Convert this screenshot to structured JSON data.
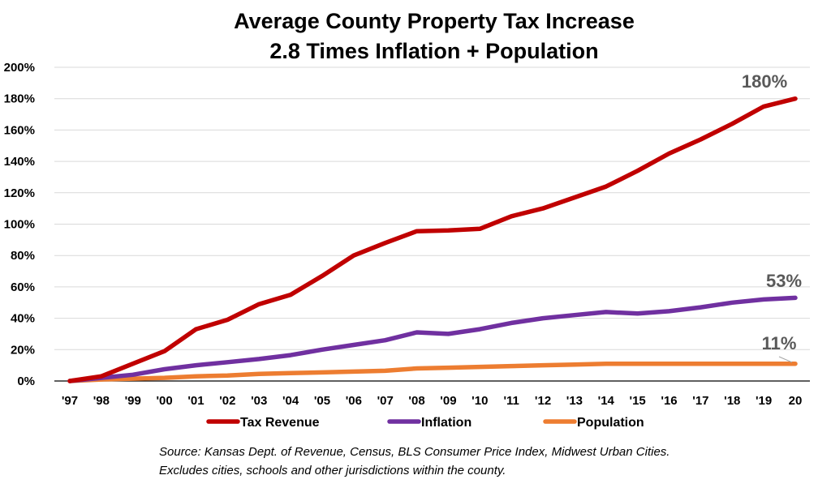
{
  "chart_data": {
    "type": "line",
    "title": "Average County Property Tax Increase",
    "subtitle": "2.8 Times Inflation + Population",
    "xlabel": "",
    "ylabel": "",
    "categories": [
      "'97",
      "'98",
      "'99",
      "'00",
      "'01",
      "'02",
      "'03",
      "'04",
      "'05",
      "'06",
      "'07",
      "'08",
      "'09",
      "'10",
      "'11",
      "'12",
      "'13",
      "'14",
      "'15",
      "'16",
      "'17",
      "'18",
      "'19",
      "20"
    ],
    "y_ticks": [
      "0%",
      "20%",
      "40%",
      "60%",
      "80%",
      "100%",
      "120%",
      "140%",
      "160%",
      "180%",
      "200%"
    ],
    "ylim": [
      0,
      200
    ],
    "y_unit": "%",
    "grid": "horizontal",
    "legend_position": "bottom",
    "series": [
      {
        "name": "Tax Revenue",
        "color": "#c00000",
        "end_label": "180%",
        "values": [
          0,
          3,
          11,
          19,
          33,
          39,
          49,
          55,
          67,
          80,
          88,
          95.5,
          96,
          97,
          105,
          110,
          117,
          124,
          134,
          145,
          154,
          164,
          175,
          180
        ]
      },
      {
        "name": "Inflation",
        "color": "#7030a0",
        "end_label": "53%",
        "values": [
          0,
          2,
          4,
          7.5,
          10,
          12,
          14,
          16.5,
          20,
          23,
          26,
          31,
          30,
          33,
          37,
          40,
          42,
          44,
          43,
          44.5,
          47,
          50,
          52,
          53
        ]
      },
      {
        "name": "Population",
        "color": "#ed7d31",
        "end_label": "11%",
        "values": [
          0,
          1,
          1.5,
          2,
          3,
          3.5,
          4.5,
          5,
          5.5,
          6,
          6.5,
          8,
          8.5,
          9,
          9.5,
          10,
          10.5,
          11,
          11,
          11,
          11,
          11,
          11,
          11
        ]
      }
    ]
  },
  "source": {
    "line1": "Source: Kansas Dept. of Revenue, Census, BLS Consumer Price Index, Midwest Urban Cities.",
    "line2": "Excludes cities, schools and other jurisdictions within the county."
  }
}
